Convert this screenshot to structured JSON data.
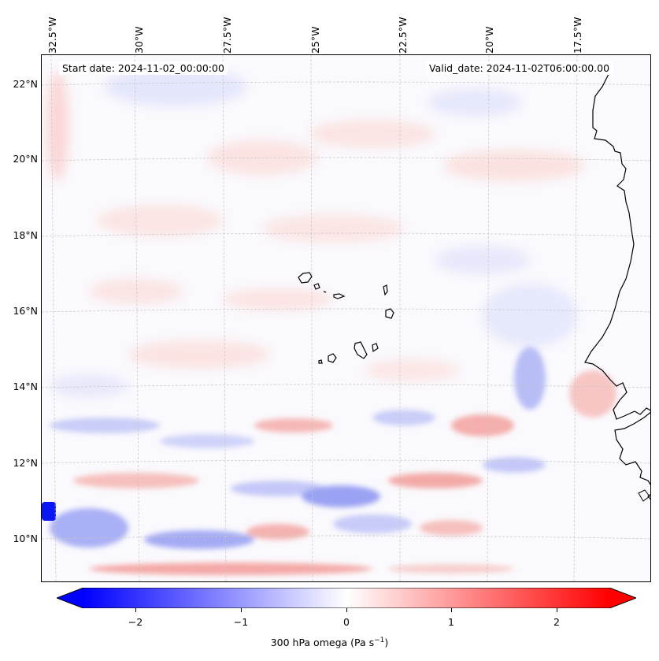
{
  "map": {
    "start_date_label": "Start date: 2024-11-02_00:00:00",
    "valid_date_label": "Valid_date: 2024-11-02T06:00:00.00",
    "longitude_labels": [
      "32.5°W",
      "30°W",
      "27.5°W",
      "25°W",
      "22.5°W",
      "20°W",
      "17.5°W"
    ],
    "latitude_labels": [
      "22°N",
      "20°N",
      "18°N",
      "16°N",
      "14°N",
      "12°N",
      "10°N"
    ],
    "field_colors": {
      "negative": "#0000ff",
      "neutral": "#ffffff",
      "positive": "#ff0000"
    },
    "coastline_color": "#000000"
  },
  "colorbar": {
    "label_prefix": "300 hPa omega (Pa s",
    "label_exponent": "−1",
    "label_suffix": ")",
    "ticks": [
      "−2",
      "−1",
      "0",
      "1",
      "2"
    ],
    "range": [
      -2.7,
      2.7
    ],
    "extend": "both"
  }
}
